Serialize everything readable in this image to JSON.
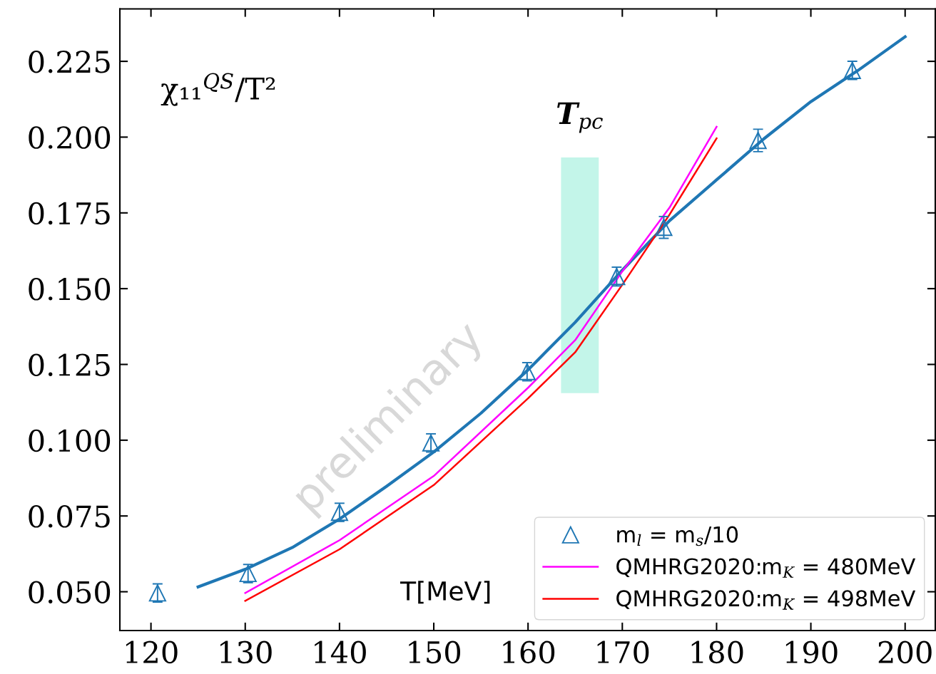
{
  "chart_data": {
    "type": "line",
    "xlabel": "T[MeV]",
    "xlim": [
      116.7,
      203.2
    ],
    "xticks": [
      120,
      130,
      140,
      150,
      160,
      170,
      180,
      190,
      200
    ],
    "ylim": [
      0.0372,
      0.2423
    ],
    "yticks": [
      {
        "value": 0.05,
        "label": "0.050"
      },
      {
        "value": 0.075,
        "label": "0.075"
      },
      {
        "value": 0.1,
        "label": "0.100"
      },
      {
        "value": 0.125,
        "label": "0.125"
      },
      {
        "value": 0.15,
        "label": "0.150"
      },
      {
        "value": 0.175,
        "label": "0.175"
      },
      {
        "value": 0.2,
        "label": "0.200"
      },
      {
        "value": 0.225,
        "label": "0.225"
      }
    ],
    "grid": false,
    "legend": "bottom right",
    "annotations": [
      "χ₁₁$^{QS}$/T²",
      "preliminary"
    ],
    "bands": [
      {
        "axis": "x",
        "from": 163.5,
        "to": 167.5,
        "label": "T$_{pc}$",
        "color": "#c3f5e9"
      }
    ],
    "series": [
      {
        "name": "m$_{l}$ = m$_{s}$/10",
        "type": "scatter",
        "marker": "triangle",
        "color": "#1f77b4",
        "x": [
          120.7,
          130.3,
          140.0,
          149.7,
          159.9,
          169.4,
          174.4,
          184.4,
          194.4
        ],
        "values": [
          0.0496,
          0.056,
          0.0762,
          0.0991,
          0.1226,
          0.154,
          0.1702,
          0.1989,
          0.222
        ],
        "errors": [
          0.003,
          0.003,
          0.003,
          0.003,
          0.003,
          0.0031,
          0.0036,
          0.0037,
          0.003
        ]
      },
      {
        "color": "#1f77b4",
        "x": [
          125,
          130,
          135,
          140,
          145,
          150,
          155,
          160,
          165,
          170,
          175,
          180,
          185,
          190,
          195,
          200
        ],
        "values": [
          0.0516,
          0.0574,
          0.0646,
          0.074,
          0.0848,
          0.0961,
          0.1089,
          0.1232,
          0.1389,
          0.1561,
          0.1724,
          0.1859,
          0.1994,
          0.2117,
          0.222,
          0.2331
        ]
      },
      {
        "name": "QMHRG2020:m$_{K}$ = 480MeV",
        "color": "#ff00ff",
        "x": [
          130,
          140,
          150,
          160,
          165,
          170,
          175,
          180
        ],
        "values": [
          0.0496,
          0.067,
          0.0882,
          0.1173,
          0.133,
          0.1557,
          0.1767,
          0.2034
        ]
      },
      {
        "name": "QMHRG2020:m$_{K}$ = 498MeV",
        "color": "#ff0000",
        "x": [
          130,
          140,
          150,
          160,
          165,
          170,
          175,
          180
        ],
        "values": [
          0.047,
          0.064,
          0.0852,
          0.1138,
          0.129,
          0.1513,
          0.1744,
          0.1996
        ]
      }
    ]
  }
}
